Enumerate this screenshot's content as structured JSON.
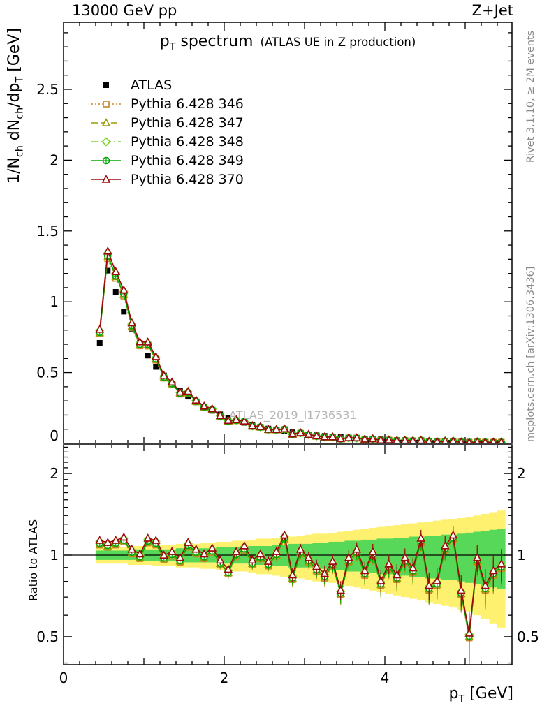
{
  "header": {
    "left": "13000 GeV pp",
    "right": "Z+Jet"
  },
  "titles": {
    "p": "p",
    "sub": "T",
    "rest": " spectrum",
    "paren": "(ATLAS UE in Z production)"
  },
  "ylabel_top": {
    "a": "1/N",
    "a_sub": "ch",
    "b": " dN",
    "b_sub": "ch",
    "c": "/dp",
    "c_sub": "T",
    "d": " [GeV]"
  },
  "ylabel_bottom": "Ratio to ATLAS",
  "xlabel": {
    "p": "p",
    "sub": "T",
    "rest": " [GeV]"
  },
  "side_notes": {
    "top_right": "Rivet 3.1.10, ≥ 2M events",
    "bottom_right": "mcplots.cern.ch [arXiv:1306.3436]"
  },
  "watermark": "ATLAS_2019_I1736531",
  "chart_data": {
    "type": "line",
    "title": "pT spectrum (ATLAS UE in Z production)",
    "xlabel": "pT [GeV]",
    "ylabel_top": "1/Nch dNch/dpT [GeV]",
    "ylabel_bottom": "Ratio to ATLAS",
    "top_panel": {
      "ylim": [
        0,
        2.97
      ],
      "yticks": [
        0,
        0.5,
        1,
        1.5,
        2,
        2.5
      ],
      "yscale": "linear"
    },
    "bottom_panel": {
      "ylim": [
        0.39,
        2.55
      ],
      "yticks": [
        0.5,
        1,
        2
      ],
      "yscale": "log"
    },
    "xlim": [
      0,
      5.58
    ],
    "xticks_labeled": [
      0,
      2,
      4
    ],
    "x": [
      0.45,
      0.55,
      0.65,
      0.75,
      0.85,
      0.95,
      1.05,
      1.15,
      1.25,
      1.35,
      1.45,
      1.55,
      1.65,
      1.75,
      1.85,
      1.95,
      2.05,
      2.15,
      2.25,
      2.35,
      2.45,
      2.55,
      2.65,
      2.75,
      2.85,
      2.95,
      3.05,
      3.15,
      3.25,
      3.35,
      3.45,
      3.55,
      3.65,
      3.75,
      3.85,
      3.95,
      4.05,
      4.15,
      4.25,
      4.35,
      4.45,
      4.55,
      4.65,
      4.75,
      4.85,
      4.95,
      5.05,
      5.15,
      5.25,
      5.35,
      5.45
    ],
    "atlas": [
      0.71,
      1.22,
      1.07,
      0.93,
      0.81,
      0.71,
      0.62,
      0.54,
      0.48,
      0.42,
      0.37,
      0.33,
      0.29,
      0.26,
      0.23,
      0.205,
      0.182,
      0.162,
      0.145,
      0.13,
      0.117,
      0.105,
      0.095,
      0.086,
      0.078,
      0.071,
      0.064,
      0.058,
      0.053,
      0.048,
      0.044,
      0.04,
      0.037,
      0.034,
      0.031,
      0.029,
      0.026,
      0.024,
      0.022,
      0.021,
      0.019,
      0.018,
      0.016,
      0.015,
      0.014,
      0.013,
      0.012,
      0.011,
      0.011,
      0.01,
      0.009
    ],
    "ratio_base": [
      1.1,
      1.08,
      1.1,
      1.13,
      1.02,
      0.98,
      1.12,
      1.1,
      0.97,
      1.0,
      0.95,
      1.08,
      1.02,
      0.98,
      1.03,
      0.93,
      0.86,
      1.0,
      1.05,
      0.93,
      0.98,
      0.92,
      1.0,
      1.15,
      0.82,
      1.02,
      0.95,
      0.88,
      0.83,
      0.92,
      0.72,
      0.95,
      1.02,
      0.85,
      1.0,
      0.78,
      0.9,
      0.82,
      0.95,
      0.87,
      1.12,
      0.75,
      0.78,
      1.05,
      1.15,
      0.72,
      0.5,
      0.95,
      0.75,
      0.85,
      0.9
    ],
    "band_yellow_halfwidth": [
      0.07,
      0.07,
      0.07,
      0.07,
      0.08,
      0.08,
      0.08,
      0.09,
      0.09,
      0.09,
      0.1,
      0.1,
      0.1,
      0.11,
      0.11,
      0.12,
      0.12,
      0.13,
      0.13,
      0.14,
      0.15,
      0.15,
      0.16,
      0.17,
      0.17,
      0.18,
      0.19,
      0.2,
      0.2,
      0.21,
      0.22,
      0.23,
      0.24,
      0.25,
      0.26,
      0.27,
      0.28,
      0.29,
      0.3,
      0.31,
      0.32,
      0.33,
      0.34,
      0.35,
      0.36,
      0.37,
      0.38,
      0.4,
      0.42,
      0.44,
      0.46
    ],
    "band_green_halfwidth": [
      0.04,
      0.04,
      0.04,
      0.04,
      0.04,
      0.05,
      0.05,
      0.05,
      0.05,
      0.05,
      0.06,
      0.06,
      0.06,
      0.06,
      0.06,
      0.07,
      0.07,
      0.07,
      0.07,
      0.08,
      0.08,
      0.08,
      0.09,
      0.09,
      0.1,
      0.1,
      0.1,
      0.11,
      0.11,
      0.12,
      0.12,
      0.13,
      0.13,
      0.14,
      0.14,
      0.15,
      0.15,
      0.16,
      0.16,
      0.17,
      0.17,
      0.18,
      0.18,
      0.19,
      0.19,
      0.2,
      0.21,
      0.22,
      0.23,
      0.24,
      0.25
    ],
    "band_colors": {
      "yellow": "#fff170",
      "green": "#58d858"
    },
    "series": [
      {
        "name": "ATLAS",
        "color": "#000000",
        "marker": "square-filled",
        "line": "none",
        "ratio_offset": 1.0
      },
      {
        "name": "Pythia 6.428 346",
        "color": "#c8862d",
        "marker": "square-open",
        "line": "dotted",
        "ratio_offset": 0.99
      },
      {
        "name": "Pythia 6.428 347",
        "color": "#9a9a00",
        "marker": "triangle-open",
        "line": "dashed",
        "ratio_offset": 1.0
      },
      {
        "name": "Pythia 6.428 348",
        "color": "#7cd42a",
        "marker": "diamond-open",
        "line": "dashdot",
        "ratio_offset": 1.02
      },
      {
        "name": "Pythia 6.428 349",
        "color": "#00a800",
        "marker": "circle-plus",
        "line": "solid",
        "ratio_offset": 1.005
      },
      {
        "name": "Pythia 6.428 370",
        "color": "#9c0a0a",
        "marker": "triangle-open",
        "line": "solid",
        "ratio_offset": 1.03
      }
    ]
  }
}
